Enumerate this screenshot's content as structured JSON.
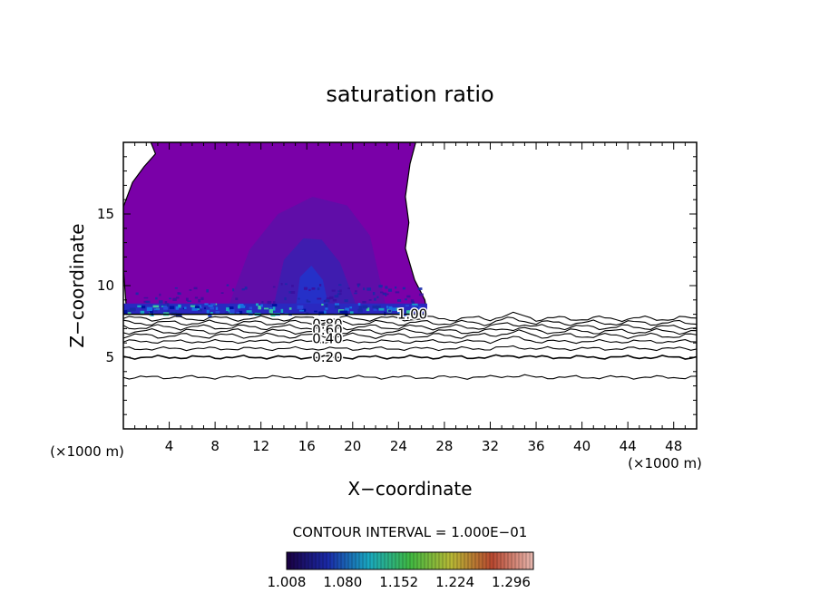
{
  "chart_data": {
    "type": "heatmap",
    "title": "saturation ratio",
    "xlabel": "X−coordinate",
    "ylabel": "Z−coordinate",
    "x_unit_left": "(×1000 m)",
    "x_unit_right": "(×1000 m)",
    "xlim": [
      0,
      50
    ],
    "ylim": [
      0,
      20
    ],
    "xticks": [
      4,
      8,
      12,
      16,
      20,
      24,
      28,
      32,
      36,
      40,
      44,
      48
    ],
    "yticks": [
      5,
      10,
      15
    ],
    "contour_interval_text": "CONTOUR INTERVAL = 1.000E−01",
    "contour_labels": [
      {
        "text": "1.00",
        "x": 25.2,
        "z": 8.0
      },
      {
        "text": "0.80",
        "x": 17.8,
        "z": 7.3
      },
      {
        "text": "0.60",
        "x": 17.8,
        "z": 6.9
      },
      {
        "text": "0.40",
        "x": 17.8,
        "z": 6.3
      },
      {
        "text": "0.20",
        "x": 17.8,
        "z": 5.0
      }
    ],
    "contour_levels": [
      {
        "level": 0.9,
        "z": 7.7
      },
      {
        "level": 0.8,
        "z": 7.4
      },
      {
        "level": 0.7,
        "z": 7.1
      },
      {
        "level": 0.6,
        "z": 6.8
      },
      {
        "level": 0.5,
        "z": 6.5
      },
      {
        "level": 0.4,
        "z": 6.1
      },
      {
        "level": 0.3,
        "z": 5.6
      },
      {
        "level": 0.2,
        "z": 5.0
      },
      {
        "level": 0.1,
        "z": 3.6
      }
    ],
    "supersaturated_region": {
      "base_z": 8.0,
      "x_range": [
        0,
        26.5
      ],
      "shading_range": [
        1.008,
        1.08
      ]
    },
    "colorbar": {
      "labels": [
        "1.008",
        "1.080",
        "1.152",
        "1.224",
        "1.296"
      ],
      "colors": [
        "#1a0040",
        "#1a2aa8",
        "#19a8c0",
        "#3fb842",
        "#b8b835",
        "#b84830",
        "#e8b8b0"
      ]
    },
    "colors": {
      "outer_purple": "#7a00a8",
      "mid_purple": "#5a10a8",
      "inner_purple": "#3a20b0",
      "core_blue": "#2530c8"
    }
  }
}
